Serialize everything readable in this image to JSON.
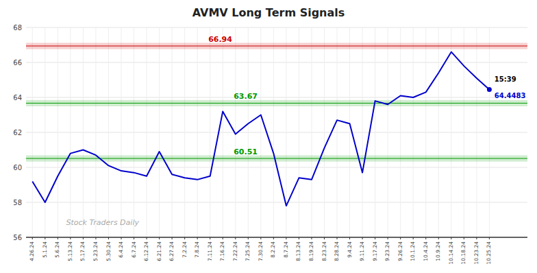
{
  "chart_data": {
    "type": "line",
    "title": "AVMV Long Term Signals",
    "categories": [
      "4.26.24",
      "5.1.24",
      "5.6.24",
      "5.13.24",
      "5.17.24",
      "5.23.24",
      "5.30.24",
      "6.4.24",
      "6.7.24",
      "6.12.24",
      "6.21.24",
      "6.27.24",
      "7.2.24",
      "7.8.24",
      "7.11.24",
      "7.16.24",
      "7.22.24",
      "7.25.24",
      "7.30.24",
      "8.2.24",
      "8.7.24",
      "8.13.24",
      "8.19.24",
      "8.23.24",
      "8.28.24",
      "9.4.24",
      "9.11.24",
      "9.17.24",
      "9.23.24",
      "9.26.24",
      "10.1.24",
      "10.4.24",
      "10.9.24",
      "10.14.24",
      "10.18.24",
      "10.23.24",
      "10.25.24"
    ],
    "series": [
      {
        "values": [
          59.2,
          58.0,
          59.5,
          60.8,
          61.0,
          60.7,
          60.1,
          59.8,
          59.7,
          59.5,
          60.9,
          59.6,
          59.4,
          59.3,
          59.5,
          63.2,
          61.9,
          62.5,
          63.0,
          60.8,
          57.8,
          59.4,
          59.3,
          61.1,
          62.7,
          62.5,
          59.7,
          63.8,
          63.6,
          64.1,
          64.0,
          64.3,
          65.4,
          66.6,
          65.8,
          65.1,
          64.4483
        ],
        "color": "#0000cc",
        "marker": "last"
      }
    ],
    "ylim": [
      56,
      68
    ],
    "yticks": [
      56,
      58,
      60,
      62,
      64,
      66,
      68
    ],
    "grid": true,
    "annotations": [
      {
        "type": "band",
        "y": 66.94,
        "text": "66.94",
        "color": "#cc0000"
      },
      {
        "type": "band",
        "y": 63.67,
        "text": "63.67",
        "color": "#009900"
      },
      {
        "type": "band",
        "y": 60.51,
        "text": "60.51",
        "color": "#009900"
      },
      {
        "type": "time",
        "text": "15:39"
      },
      {
        "type": "last_value",
        "text": "64.4483"
      }
    ],
    "watermark": "Stock Traders Daily"
  }
}
